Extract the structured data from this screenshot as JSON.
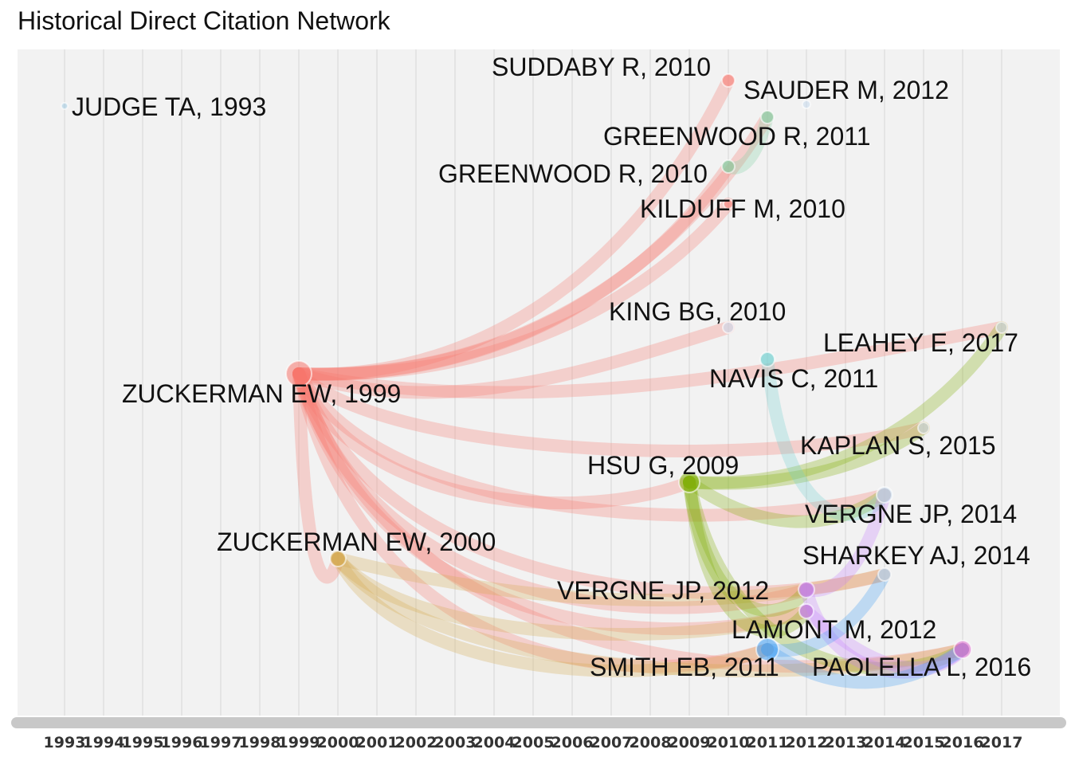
{
  "title": "Historical Direct Citation Network",
  "chart_data": {
    "type": "network",
    "title": "Historical Direct Citation Network",
    "xaxis": {
      "label": "",
      "ticks": [
        1993,
        1994,
        1995,
        1996,
        1997,
        1998,
        1999,
        2000,
        2001,
        2002,
        2003,
        2004,
        2005,
        2006,
        2007,
        2008,
        2009,
        2010,
        2011,
        2012,
        2013,
        2014,
        2015,
        2016,
        2017
      ]
    },
    "grid": true,
    "colors": {
      "panel": "#f2f2f2",
      "grid": "#e0e0e0",
      "axis_bar": "#c8c8c8"
    },
    "nodes": [
      {
        "id": "judge1993",
        "label": "JUDGE TA, 1993",
        "year": 1993,
        "color": "#9ecae1"
      },
      {
        "id": "zuck1999",
        "label": "ZUCKERMAN EW, 1999",
        "year": 1999,
        "color": "#f8766d"
      },
      {
        "id": "zuck2000",
        "label": "ZUCKERMAN EW, 2000",
        "year": 2000,
        "color": "#d4a94a"
      },
      {
        "id": "hsu2009",
        "label": "HSU G, 2009",
        "year": 2009,
        "color": "#7cae00"
      },
      {
        "id": "suddaby2010",
        "label": "SUDDABY R, 2010",
        "year": 2010,
        "color": "#f8766d"
      },
      {
        "id": "greenwood2010",
        "label": "GREENWOOD R, 2010",
        "year": 2010,
        "color": "#7cd0a0"
      },
      {
        "id": "kilduff2010",
        "label": "KILDUFF M, 2010",
        "year": 2010,
        "color": "#f8766d"
      },
      {
        "id": "king2010",
        "label": "KING BG, 2010",
        "year": 2010,
        "color": "#c6dbef"
      },
      {
        "id": "greenwood2011",
        "label": "GREENWOOD R, 2011",
        "year": 2011,
        "color": "#7cd0a0"
      },
      {
        "id": "navis2011",
        "label": "NAVIS C, 2011",
        "year": 2011,
        "color": "#6fcfcf"
      },
      {
        "id": "smith2011",
        "label": "SMITH EB, 2011",
        "year": 2011,
        "color": "#3a9cf5"
      },
      {
        "id": "sauder2012",
        "label": "SAUDER M, 2012",
        "year": 2012,
        "color": "#c6dbef"
      },
      {
        "id": "vergne2012",
        "label": "VERGNE JP, 2012",
        "year": 2012,
        "color": "#c77cff"
      },
      {
        "id": "lamont2012",
        "label": "LAMONT M, 2012",
        "year": 2012,
        "color": "#c77cff"
      },
      {
        "id": "vergne2014",
        "label": "VERGNE JP, 2014",
        "year": 2014,
        "color": "#c6dbef"
      },
      {
        "id": "sharkey2014",
        "label": "SHARKEY AJ, 2014",
        "year": 2014,
        "color": "#c6dbef"
      },
      {
        "id": "kaplan2015",
        "label": "KAPLAN S, 2015",
        "year": 2015,
        "color": "#c6dbef"
      },
      {
        "id": "paolella2016",
        "label": "PAOLELLA L, 2016",
        "year": 2016,
        "color": "#e066d0"
      },
      {
        "id": "leahey2017",
        "label": "LEAHEY E, 2017",
        "year": 2017,
        "color": "#c6dbef"
      }
    ],
    "edges": [
      {
        "from": "zuck1999",
        "to": "suddaby2010"
      },
      {
        "from": "zuck1999",
        "to": "greenwood2011"
      },
      {
        "from": "zuck1999",
        "to": "greenwood2010"
      },
      {
        "from": "zuck1999",
        "to": "kilduff2010"
      },
      {
        "from": "zuck1999",
        "to": "king2010"
      },
      {
        "from": "zuck1999",
        "to": "leahey2017"
      },
      {
        "from": "zuck1999",
        "to": "kaplan2015"
      },
      {
        "from": "zuck1999",
        "to": "hsu2009"
      },
      {
        "from": "zuck1999",
        "to": "vergne2014"
      },
      {
        "from": "zuck1999",
        "to": "sharkey2014"
      },
      {
        "from": "zuck1999",
        "to": "vergne2012"
      },
      {
        "from": "zuck1999",
        "to": "lamont2012"
      },
      {
        "from": "zuck1999",
        "to": "smith2011"
      },
      {
        "from": "zuck1999",
        "to": "paolella2016"
      },
      {
        "from": "zuck1999",
        "to": "zuck2000"
      },
      {
        "from": "zuck2000",
        "to": "smith2011"
      },
      {
        "from": "zuck2000",
        "to": "lamont2012"
      },
      {
        "from": "zuck2000",
        "to": "sharkey2014"
      },
      {
        "from": "zuck2000",
        "to": "paolella2016"
      },
      {
        "from": "hsu2009",
        "to": "leahey2017"
      },
      {
        "from": "hsu2009",
        "to": "kaplan2015"
      },
      {
        "from": "hsu2009",
        "to": "vergne2014"
      },
      {
        "from": "hsu2009",
        "to": "vergne2012"
      },
      {
        "from": "hsu2009",
        "to": "lamont2012"
      },
      {
        "from": "hsu2009",
        "to": "paolella2016"
      },
      {
        "from": "greenwood2010",
        "to": "greenwood2011"
      },
      {
        "from": "navis2011",
        "to": "vergne2014"
      },
      {
        "from": "vergne2012",
        "to": "vergne2014"
      },
      {
        "from": "vergne2012",
        "to": "paolella2016"
      },
      {
        "from": "lamont2012",
        "to": "paolella2016"
      },
      {
        "from": "smith2011",
        "to": "sharkey2014"
      },
      {
        "from": "smith2011",
        "to": "paolella2016"
      }
    ]
  }
}
